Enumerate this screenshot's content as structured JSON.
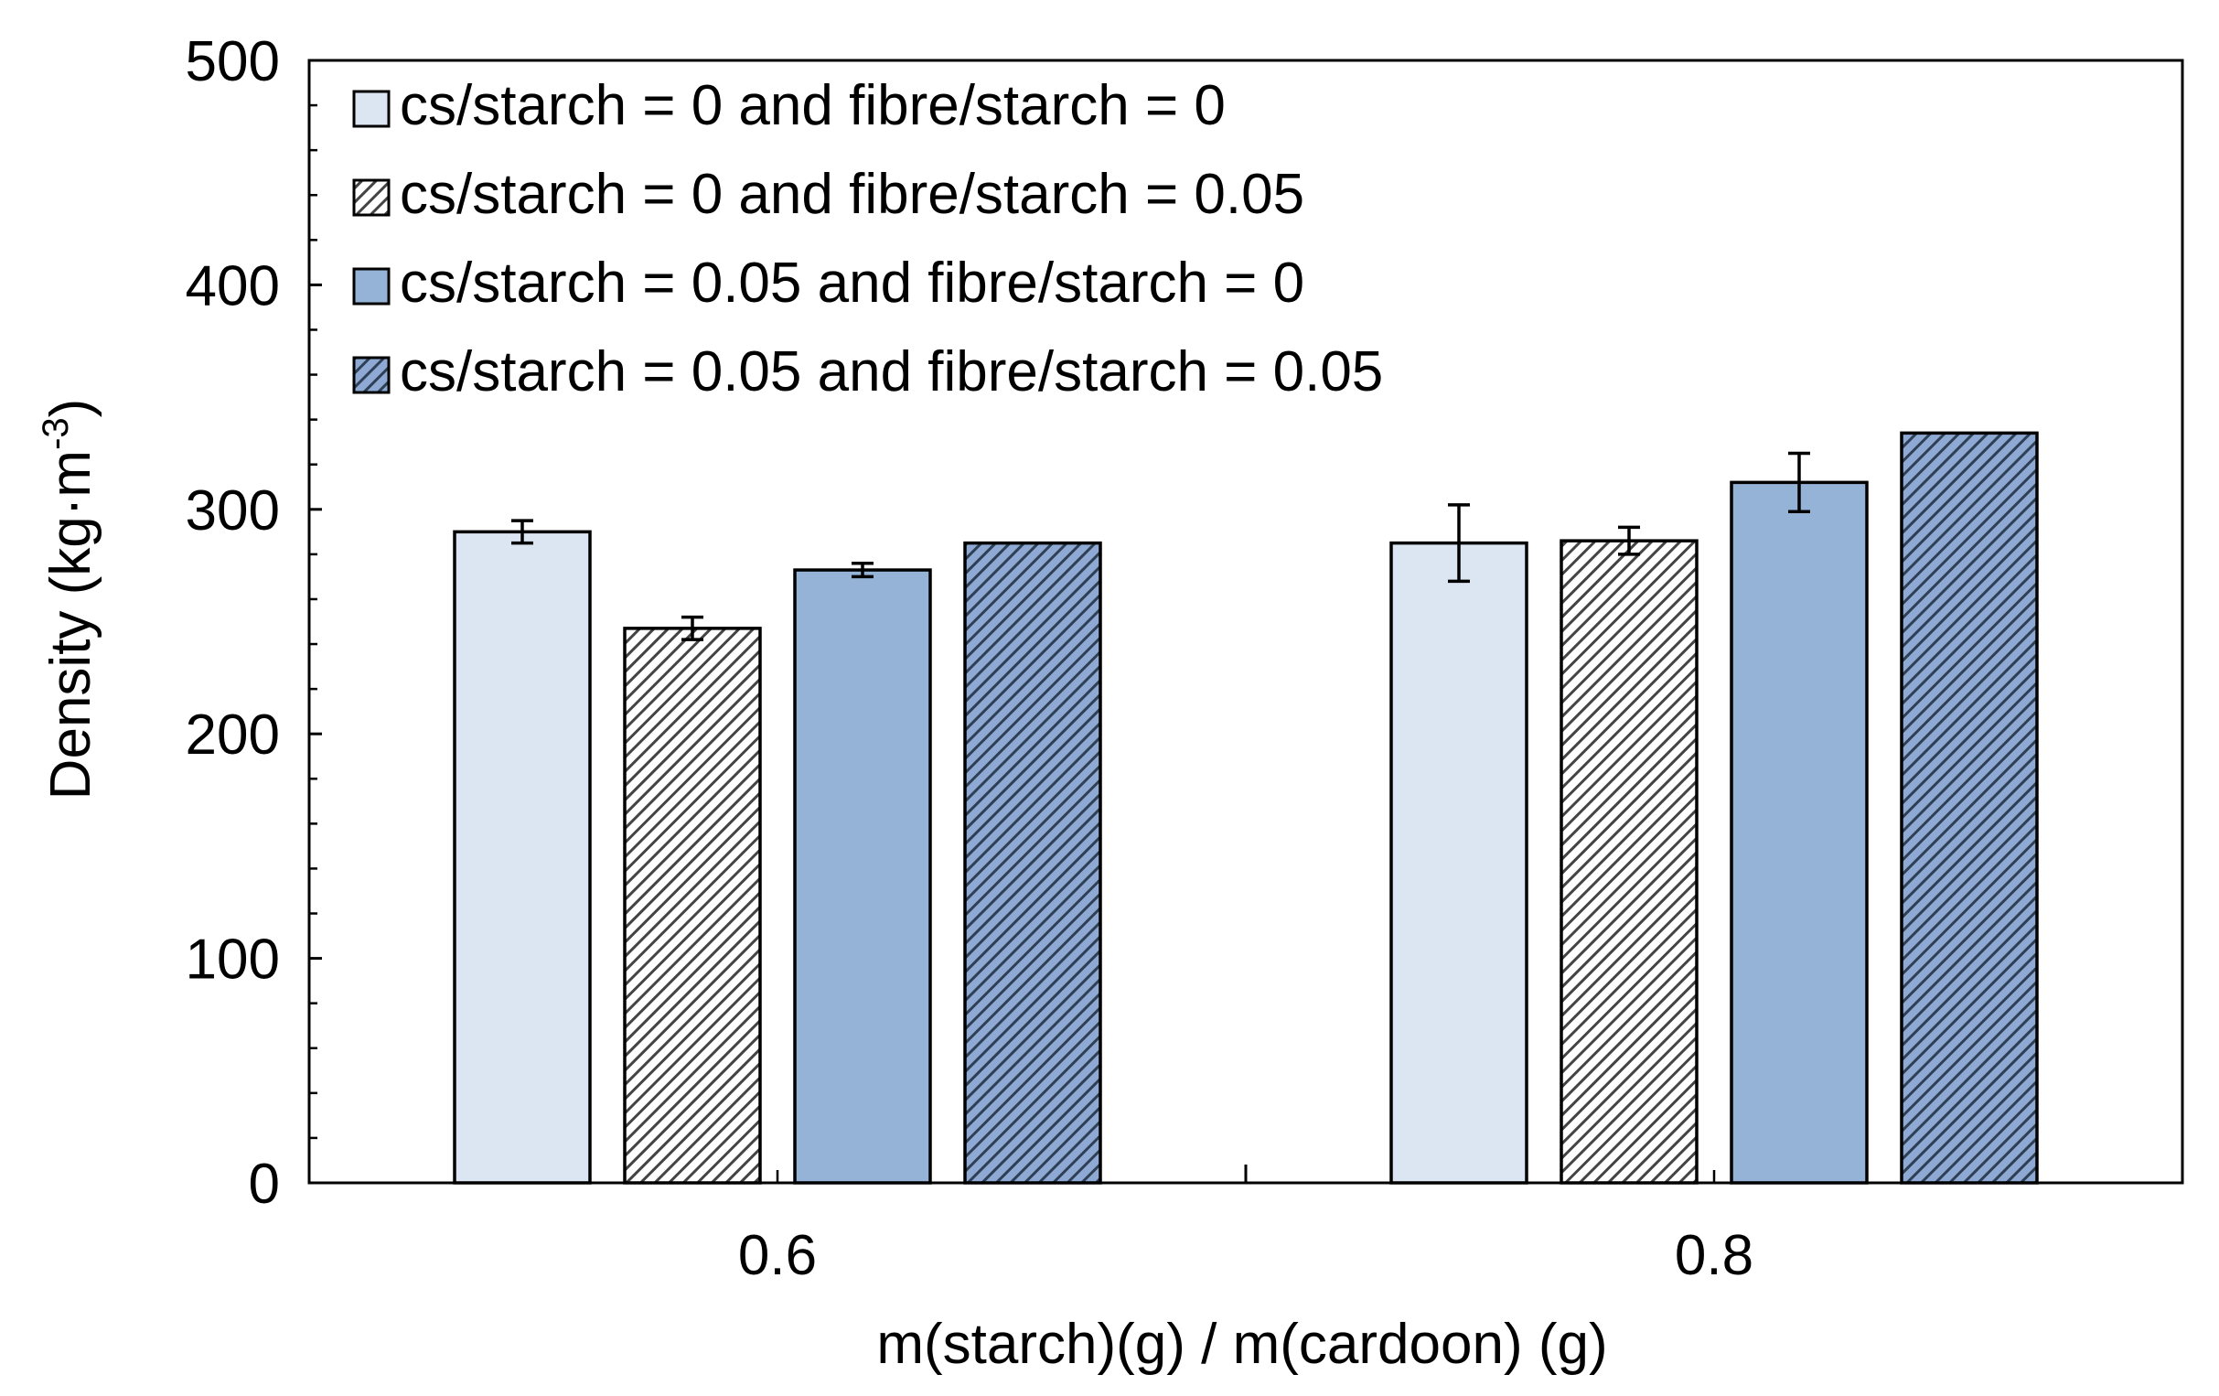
{
  "chart_data": {
    "type": "bar",
    "title": "",
    "xlabel": "m(starch)(g) / m(cardoon) (g)",
    "ylabel": "Density (kg·m⁻³)",
    "ylabel_main": "Density (kg·m",
    "ylabel_sup": "-3",
    "ylabel_end": ")",
    "ylim": [
      0,
      500
    ],
    "yticks": [
      0,
      100,
      200,
      300,
      400,
      500
    ],
    "ytick_labels": [
      "0",
      "100",
      "200",
      "300",
      "400",
      "500"
    ],
    "categories": [
      "0.6",
      "0.8"
    ],
    "legend_position": "top-left",
    "series": [
      {
        "name": "cs/starch = 0 and fibre/starch = 0",
        "values": [
          290,
          285
        ],
        "errors": [
          5,
          17
        ],
        "color": "#dce6f2",
        "hatched": false
      },
      {
        "name": "cs/starch = 0 and fibre/starch = 0.05",
        "values": [
          247,
          286
        ],
        "errors": [
          5,
          6
        ],
        "color": "#ffffff",
        "hatched": true
      },
      {
        "name": "cs/starch = 0.05 and fibre/starch = 0",
        "values": [
          273,
          312
        ],
        "errors": [
          3,
          13
        ],
        "color": "#95b3d7",
        "hatched": false
      },
      {
        "name": "cs/starch = 0.05 and fibre/starch = 0.05",
        "values": [
          285,
          334
        ],
        "errors": [
          0,
          0
        ],
        "color": "#8eaad4",
        "hatched": true
      }
    ]
  }
}
